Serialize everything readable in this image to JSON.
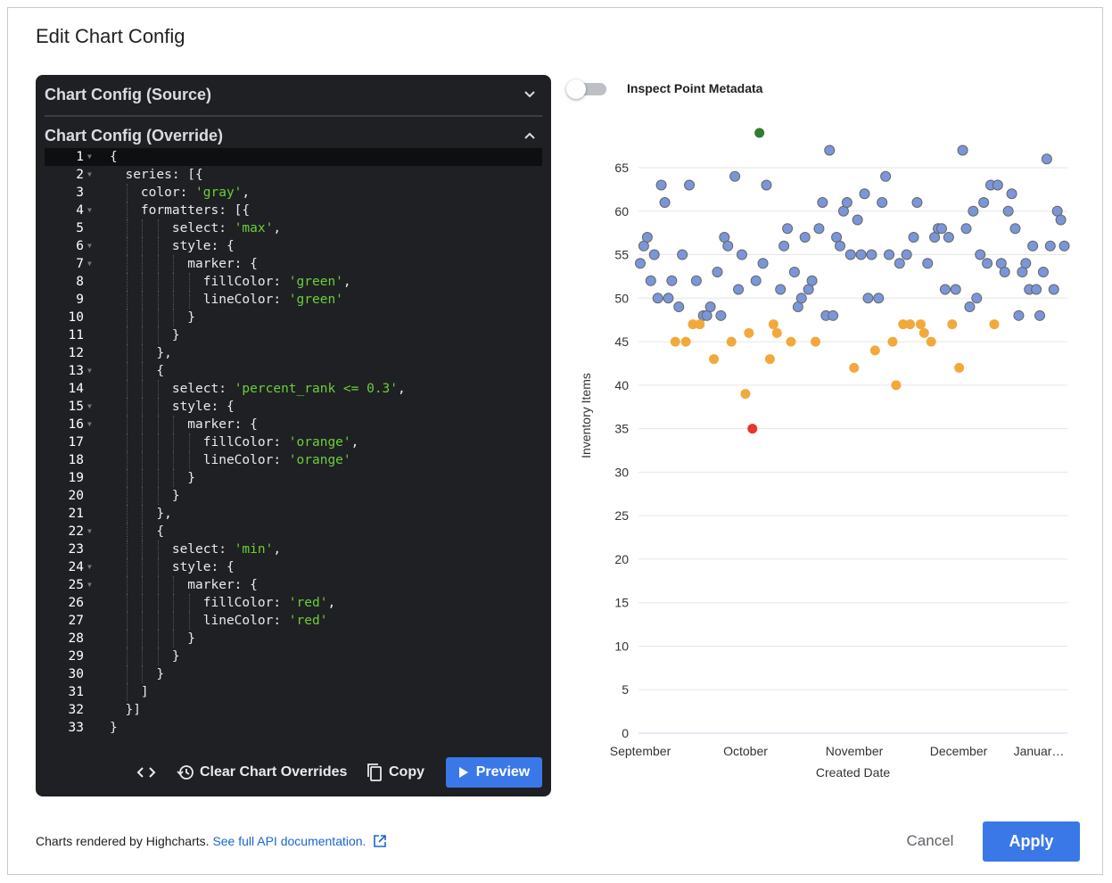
{
  "dialog": {
    "title": "Edit Chart Config"
  },
  "editor": {
    "source_label": "Chart Config (Source)",
    "override_label": "Chart Config (Override)",
    "active_line": 1,
    "fold_lines": [
      1,
      2,
      4,
      6,
      7,
      13,
      15,
      16,
      22,
      24,
      25
    ],
    "lines": [
      "{",
      "  series: [{",
      "    color: 'gray',",
      "    formatters: [{",
      "        select: 'max',",
      "        style: {",
      "          marker: {",
      "            fillColor: 'green',",
      "            lineColor: 'green'",
      "          }",
      "        }",
      "      },",
      "      {",
      "        select: 'percent_rank <= 0.3',",
      "        style: {",
      "          marker: {",
      "            fillColor: 'orange',",
      "            lineColor: 'orange'",
      "          }",
      "        }",
      "      },",
      "      {",
      "        select: 'min',",
      "        style: {",
      "          marker: {",
      "            fillColor: 'red',",
      "            lineColor: 'red'",
      "          }",
      "        }",
      "      }",
      "    ]",
      "  }]",
      "}"
    ],
    "toolbar": {
      "code_icon": "code-brackets-icon",
      "clear_label": "Clear Chart Overrides",
      "copy_label": "Copy",
      "preview_label": "Preview"
    }
  },
  "inspect_toggle": {
    "label": "Inspect Point Metadata",
    "on": false
  },
  "footer": {
    "text": "Charts rendered by Highcharts.",
    "link": "See full API documentation.",
    "cancel": "Cancel",
    "apply": "Apply"
  },
  "colors": {
    "accent": "#3b78e7",
    "editor_bg": "#1f2023",
    "string": "#6ccf3a"
  },
  "chart_data": {
    "type": "scatter",
    "xlabel": "Created Date",
    "ylabel": "Inventory Items",
    "x_ticks": [
      "September",
      "October",
      "November",
      "December",
      "Januar…"
    ],
    "yticks": [
      0,
      5,
      10,
      15,
      20,
      25,
      30,
      35,
      40,
      45,
      50,
      55,
      60,
      65
    ],
    "ylim": [
      0,
      70
    ],
    "grid": true,
    "colors": {
      "default": "#7b96d8",
      "max": "#2e7d32",
      "percent_rank_low": "#f2a93b",
      "min": "#e8362d"
    },
    "points": {
      "default": [
        [
          "09-01",
          54
        ],
        [
          "09-02",
          56
        ],
        [
          "09-03",
          57
        ],
        [
          "09-04",
          52
        ],
        [
          "09-05",
          55
        ],
        [
          "09-06",
          50
        ],
        [
          "09-07",
          63
        ],
        [
          "09-08",
          61
        ],
        [
          "09-09",
          50
        ],
        [
          "09-10",
          52
        ],
        [
          "09-12",
          49
        ],
        [
          "09-13",
          55
        ],
        [
          "09-15",
          63
        ],
        [
          "09-17",
          52
        ],
        [
          "09-19",
          48
        ],
        [
          "09-20",
          48
        ],
        [
          "09-21",
          49
        ],
        [
          "09-23",
          53
        ],
        [
          "09-24",
          48
        ],
        [
          "09-25",
          57
        ],
        [
          "09-26",
          56
        ],
        [
          "09-28",
          64
        ],
        [
          "09-29",
          51
        ],
        [
          "09-30",
          55
        ],
        [
          "10-04",
          52
        ],
        [
          "10-06",
          54
        ],
        [
          "10-07",
          63
        ],
        [
          "10-11",
          51
        ],
        [
          "10-12",
          56
        ],
        [
          "10-13",
          58
        ],
        [
          "10-15",
          53
        ],
        [
          "10-16",
          49
        ],
        [
          "10-17",
          50
        ],
        [
          "10-18",
          57
        ],
        [
          "10-19",
          51
        ],
        [
          "10-20",
          52
        ],
        [
          "10-22",
          58
        ],
        [
          "10-23",
          61
        ],
        [
          "10-24",
          48
        ],
        [
          "10-25",
          67
        ],
        [
          "10-26",
          48
        ],
        [
          "10-27",
          57
        ],
        [
          "10-28",
          56
        ],
        [
          "10-29",
          60
        ],
        [
          "10-30",
          61
        ],
        [
          "10-31",
          55
        ],
        [
          "11-02",
          59
        ],
        [
          "11-03",
          55
        ],
        [
          "11-04",
          62
        ],
        [
          "11-05",
          50
        ],
        [
          "11-06",
          55
        ],
        [
          "11-08",
          50
        ],
        [
          "11-09",
          61
        ],
        [
          "11-10",
          64
        ],
        [
          "11-11",
          55
        ],
        [
          "11-14",
          54
        ],
        [
          "11-16",
          55
        ],
        [
          "11-18",
          57
        ],
        [
          "11-19",
          61
        ],
        [
          "11-22",
          54
        ],
        [
          "11-24",
          57
        ],
        [
          "11-25",
          58
        ],
        [
          "11-26",
          58
        ],
        [
          "11-27",
          51
        ],
        [
          "11-28",
          57
        ],
        [
          "11-30",
          51
        ],
        [
          "12-02",
          67
        ],
        [
          "12-03",
          58
        ],
        [
          "12-04",
          49
        ],
        [
          "12-05",
          60
        ],
        [
          "12-06",
          50
        ],
        [
          "12-07",
          55
        ],
        [
          "12-08",
          61
        ],
        [
          "12-09",
          54
        ],
        [
          "12-10",
          63
        ],
        [
          "12-12",
          63
        ],
        [
          "12-13",
          54
        ],
        [
          "12-14",
          53
        ],
        [
          "12-15",
          60
        ],
        [
          "12-16",
          62
        ],
        [
          "12-17",
          58
        ],
        [
          "12-18",
          48
        ],
        [
          "12-19",
          53
        ],
        [
          "12-20",
          54
        ],
        [
          "12-21",
          51
        ],
        [
          "12-22",
          56
        ],
        [
          "12-23",
          51
        ],
        [
          "12-24",
          48
        ],
        [
          "12-25",
          53
        ],
        [
          "12-26",
          66
        ],
        [
          "12-27",
          56
        ],
        [
          "12-28",
          51
        ],
        [
          "12-29",
          60
        ],
        [
          "12-30",
          59
        ],
        [
          "12-31",
          56
        ]
      ],
      "percent_rank_low": [
        [
          "09-11",
          45
        ],
        [
          "09-14",
          45
        ],
        [
          "09-16",
          47
        ],
        [
          "09-18",
          47
        ],
        [
          "09-22",
          43
        ],
        [
          "09-27",
          45
        ],
        [
          "10-01",
          39
        ],
        [
          "10-02",
          46
        ],
        [
          "10-08",
          43
        ],
        [
          "10-09",
          47
        ],
        [
          "10-10",
          46
        ],
        [
          "10-14",
          45
        ],
        [
          "10-21",
          45
        ],
        [
          "11-01",
          42
        ],
        [
          "11-07",
          44
        ],
        [
          "11-12",
          45
        ],
        [
          "11-13",
          40
        ],
        [
          "11-15",
          47
        ],
        [
          "11-17",
          47
        ],
        [
          "11-20",
          47
        ],
        [
          "11-21",
          46
        ],
        [
          "11-23",
          45
        ],
        [
          "11-29",
          47
        ],
        [
          "12-01",
          42
        ],
        [
          "12-11",
          47
        ]
      ],
      "max": [
        [
          "10-05",
          69
        ]
      ],
      "min": [
        [
          "10-03",
          35
        ]
      ]
    }
  }
}
